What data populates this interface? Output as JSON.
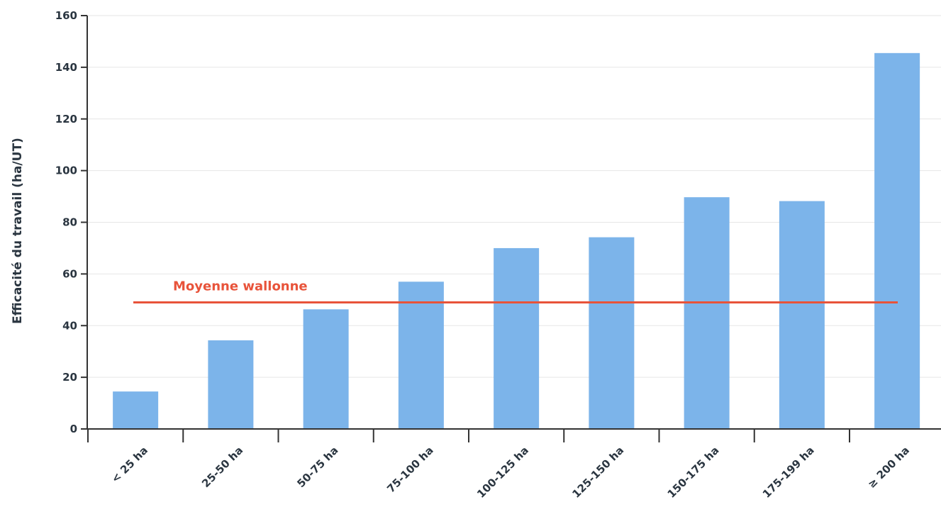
{
  "chart_data": {
    "type": "bar",
    "ylabel": "Efficacité du travail (ha/UT)",
    "xlabel": "",
    "ylim": [
      0,
      160
    ],
    "yticks": [
      0,
      20,
      40,
      60,
      80,
      100,
      120,
      140,
      160
    ],
    "grid": true,
    "categories": [
      "< 25 ha",
      "25-50 ha",
      "50-75 ha",
      "75-100 ha",
      "100-125 ha",
      "125-150 ha",
      "150-175 ha",
      "175-199 ha",
      "≥ 200 ha"
    ],
    "values": [
      14.5,
      34.3,
      46.3,
      57.0,
      70.0,
      74.2,
      89.7,
      88.2,
      145.5
    ],
    "bar_color": "#7cb4ea",
    "reference_line": {
      "label": "Moyenne wallonne",
      "value": 49.0,
      "color": "#e8533a"
    }
  }
}
